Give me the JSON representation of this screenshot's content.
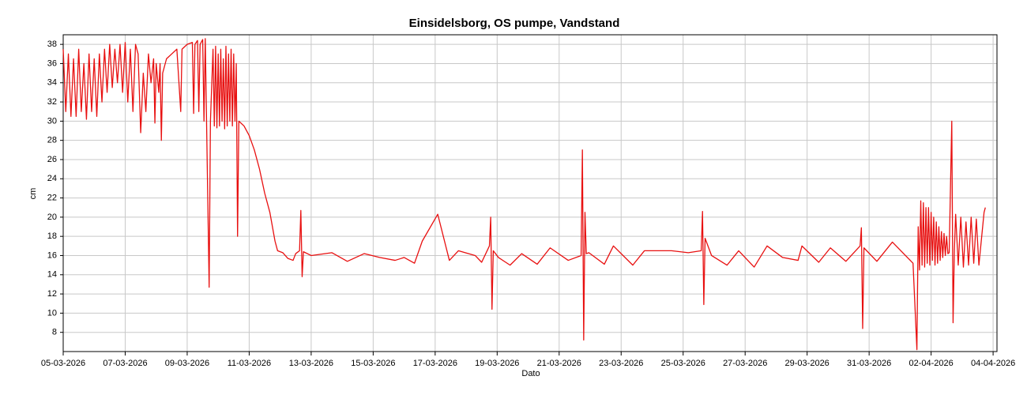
{
  "chart_data": {
    "type": "line",
    "title": "Einsidelsborg, OS pumpe, Vandstand",
    "x_label": "Dato",
    "y_label": "cm",
    "color": "#e81010",
    "grid": true,
    "xlim": [
      "2026-03-05T00:00",
      "2026-04-04T03:00"
    ],
    "ylim": [
      6,
      39
    ],
    "yticks": [
      8,
      10,
      12,
      14,
      16,
      18,
      20,
      22,
      24,
      26,
      28,
      30,
      32,
      34,
      36,
      38
    ],
    "xticks": [
      {
        "value": "2026-03-05T00:00",
        "label": "05-03-2026"
      },
      {
        "value": "2026-03-07T00:00",
        "label": "07-03-2026"
      },
      {
        "value": "2026-03-09T00:00",
        "label": "09-03-2026"
      },
      {
        "value": "2026-03-11T00:00",
        "label": "11-03-2026"
      },
      {
        "value": "2026-03-13T00:00",
        "label": "13-03-2026"
      },
      {
        "value": "2026-03-15T00:00",
        "label": "15-03-2026"
      },
      {
        "value": "2026-03-17T00:00",
        "label": "17-03-2026"
      },
      {
        "value": "2026-03-19T00:00",
        "label": "19-03-2026"
      },
      {
        "value": "2026-03-21T00:00",
        "label": "21-03-2026"
      },
      {
        "value": "2026-03-23T00:00",
        "label": "23-03-2026"
      },
      {
        "value": "2026-03-25T00:00",
        "label": "25-03-2026"
      },
      {
        "value": "2026-03-27T00:00",
        "label": "27-03-2026"
      },
      {
        "value": "2026-03-29T00:00",
        "label": "29-03-2026"
      },
      {
        "value": "2026-03-31T00:00",
        "label": "31-03-2026"
      },
      {
        "value": "2026-04-02T00:00",
        "label": "02-04-2026"
      },
      {
        "value": "2026-04-04T00:00",
        "label": "04-04-2026"
      }
    ],
    "x": [
      "2026-03-05T00:00",
      "2026-03-05T02:00",
      "2026-03-05T04:00",
      "2026-03-05T06:00",
      "2026-03-05T08:00",
      "2026-03-05T10:00",
      "2026-03-05T12:00",
      "2026-03-05T14:00",
      "2026-03-05T16:00",
      "2026-03-05T18:00",
      "2026-03-05T20:00",
      "2026-03-05T22:00",
      "2026-03-06T00:00",
      "2026-03-06T02:00",
      "2026-03-06T04:00",
      "2026-03-06T06:00",
      "2026-03-06T08:00",
      "2026-03-06T10:00",
      "2026-03-06T12:00",
      "2026-03-06T14:00",
      "2026-03-06T16:00",
      "2026-03-06T18:00",
      "2026-03-06T20:00",
      "2026-03-06T22:00",
      "2026-03-07T00:00",
      "2026-03-07T02:00",
      "2026-03-07T04:00",
      "2026-03-07T06:00",
      "2026-03-07T08:00",
      "2026-03-07T10:00",
      "2026-03-07T12:00",
      "2026-03-07T14:00",
      "2026-03-07T16:00",
      "2026-03-07T18:00",
      "2026-03-07T20:00",
      "2026-03-07T22:00",
      "2026-03-07T23:00",
      "2026-03-08T00:00",
      "2026-03-08T02:00",
      "2026-03-08T03:00",
      "2026-03-08T04:00",
      "2026-03-08T05:00",
      "2026-03-08T08:00",
      "2026-03-08T12:00",
      "2026-03-08T16:00",
      "2026-03-08T19:00",
      "2026-03-08T20:00",
      "2026-03-09T00:00",
      "2026-03-09T04:00",
      "2026-03-09T05:00",
      "2026-03-09T06:00",
      "2026-03-09T08:00",
      "2026-03-09T09:00",
      "2026-03-09T10:00",
      "2026-03-09T12:00",
      "2026-03-09T13:00",
      "2026-03-09T14:00",
      "2026-03-09T17:00",
      "2026-03-09T18:00",
      "2026-03-09T20:00",
      "2026-03-09T21:00",
      "2026-03-09T22:00",
      "2026-03-09T23:00",
      "2026-03-10T00:00",
      "2026-03-10T01:00",
      "2026-03-10T02:00",
      "2026-03-10T03:00",
      "2026-03-10T04:00",
      "2026-03-10T05:00",
      "2026-03-10T06:00",
      "2026-03-10T07:00",
      "2026-03-10T08:00",
      "2026-03-10T09:00",
      "2026-03-10T10:00",
      "2026-03-10T11:00",
      "2026-03-10T12:00",
      "2026-03-10T13:00",
      "2026-03-10T14:00",
      "2026-03-10T15:00",
      "2026-03-10T16:00",
      "2026-03-10T20:00",
      "2026-03-11T00:00",
      "2026-03-11T04:00",
      "2026-03-11T08:00",
      "2026-03-11T12:00",
      "2026-03-11T16:00",
      "2026-03-11T18:00",
      "2026-03-11T20:00",
      "2026-03-11T22:00",
      "2026-03-12T02:00",
      "2026-03-12T06:00",
      "2026-03-12T10:00",
      "2026-03-12T12:00",
      "2026-03-12T15:00",
      "2026-03-12T16:00",
      "2026-03-12T17:00",
      "2026-03-12T18:00",
      "2026-03-13T00:00",
      "2026-03-13T16:00",
      "2026-03-14T04:00",
      "2026-03-14T17:00",
      "2026-03-15T05:00",
      "2026-03-15T17:00",
      "2026-03-16T00:00",
      "2026-03-16T08:00",
      "2026-03-16T14:00",
      "2026-03-17T02:00",
      "2026-03-17T11:00",
      "2026-03-17T18:00",
      "2026-03-18T07:00",
      "2026-03-18T12:00",
      "2026-03-18T18:00",
      "2026-03-18T19:00",
      "2026-03-18T20:00",
      "2026-03-18T21:00",
      "2026-03-19T01:00",
      "2026-03-19T10:00",
      "2026-03-19T19:00",
      "2026-03-20T07:00",
      "2026-03-20T17:00",
      "2026-03-21T07:00",
      "2026-03-21T17:00",
      "2026-03-21T18:00",
      "2026-03-21T19:00",
      "2026-03-21T20:00",
      "2026-03-21T21:00",
      "2026-03-21T23:00",
      "2026-03-22T11:00",
      "2026-03-22T18:00",
      "2026-03-23T09:00",
      "2026-03-23T18:00",
      "2026-03-24T15:00",
      "2026-03-25T04:00",
      "2026-03-25T14:00",
      "2026-03-25T15:00",
      "2026-03-25T16:00",
      "2026-03-25T17:00",
      "2026-03-25T22:00",
      "2026-03-26T10:00",
      "2026-03-26T19:00",
      "2026-03-27T07:00",
      "2026-03-27T17:00",
      "2026-03-28T05:00",
      "2026-03-28T17:00",
      "2026-03-28T20:00",
      "2026-03-29T09:00",
      "2026-03-29T18:00",
      "2026-03-30T06:00",
      "2026-03-30T17:00",
      "2026-03-30T18:00",
      "2026-03-30T19:00",
      "2026-03-30T20:00",
      "2026-03-31T06:00",
      "2026-03-31T18:00",
      "2026-04-01T10:00",
      "2026-04-01T13:00",
      "2026-04-01T14:00",
      "2026-04-01T15:00",
      "2026-04-01T16:00",
      "2026-04-01T17:00",
      "2026-04-01T18:00",
      "2026-04-01T19:00",
      "2026-04-01T20:00",
      "2026-04-01T21:00",
      "2026-04-01T22:00",
      "2026-04-01T23:00",
      "2026-04-02T00:00",
      "2026-04-02T01:00",
      "2026-04-02T02:00",
      "2026-04-02T03:00",
      "2026-04-02T04:00",
      "2026-04-02T05:00",
      "2026-04-02T06:00",
      "2026-04-02T07:00",
      "2026-04-02T08:00",
      "2026-04-02T09:00",
      "2026-04-02T10:00",
      "2026-04-02T11:00",
      "2026-04-02T12:00",
      "2026-04-02T13:00",
      "2026-04-02T14:00",
      "2026-04-02T16:00",
      "2026-04-02T17:00",
      "2026-04-02T18:00",
      "2026-04-02T19:00",
      "2026-04-02T21:00",
      "2026-04-02T23:00",
      "2026-04-03T01:00",
      "2026-04-03T03:00",
      "2026-04-03T05:00",
      "2026-04-03T07:00",
      "2026-04-03T09:00",
      "2026-04-03T11:00",
      "2026-04-03T13:00",
      "2026-04-03T17:00",
      "2026-04-03T18:00"
    ],
    "values": [
      37.5,
      31,
      37,
      30.5,
      36.5,
      30.5,
      37.5,
      31,
      36,
      30.2,
      37,
      31,
      36.5,
      30.5,
      37,
      32,
      37.5,
      33,
      38,
      33.5,
      37.5,
      34,
      38,
      33,
      38.2,
      32,
      37.5,
      31,
      38,
      37,
      28.8,
      35,
      31,
      37,
      34,
      36.5,
      29.8,
      36,
      33,
      36,
      28,
      35,
      36.5,
      37,
      37.5,
      31,
      37.5,
      38,
      38.2,
      30.8,
      38,
      38.4,
      31,
      38,
      38.5,
      30,
      38.6,
      12.7,
      30,
      37.5,
      29.5,
      37.8,
      29.3,
      37,
      29.5,
      37.5,
      30,
      36.5,
      29.2,
      37.8,
      29.5,
      37,
      30,
      37.5,
      29.5,
      37,
      30,
      36,
      18,
      30,
      29.5,
      28.5,
      27,
      25,
      22.5,
      20.5,
      19,
      17.5,
      16.5,
      16.3,
      15.7,
      15.5,
      16.2,
      16.5,
      20.7,
      13.8,
      16.4,
      16,
      16.3,
      15.4,
      16.2,
      15.8,
      15.5,
      15.8,
      15.2,
      17.5,
      20.3,
      15.5,
      16.5,
      16,
      15.3,
      17,
      20,
      10.4,
      16.5,
      15.8,
      15,
      16.2,
      15.1,
      16.8,
      15.5,
      16,
      27,
      7.2,
      20.5,
      16.2,
      16.3,
      15.1,
      17,
      15,
      16.5,
      16.5,
      16.3,
      16.5,
      20.6,
      10.9,
      17.8,
      16,
      15,
      16.5,
      14.8,
      17,
      15.8,
      15.5,
      17,
      15.3,
      16.8,
      15.4,
      17,
      18.9,
      8.4,
      16.8,
      15.4,
      17.4,
      15.2,
      6.2,
      19,
      14.5,
      21.7,
      15,
      21.5,
      14.8,
      21,
      15.2,
      21,
      15,
      20.5,
      15.5,
      20,
      15,
      19.5,
      15.2,
      19,
      15.5,
      18.5,
      15.8,
      18.3,
      16,
      18,
      16.2,
      16.3,
      30,
      9,
      16.5,
      20.3,
      15,
      20,
      14.8,
      19.5,
      15,
      20,
      15.2,
      19.8,
      15,
      20.5,
      21
    ]
  }
}
